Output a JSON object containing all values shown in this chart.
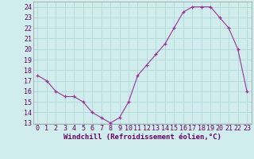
{
  "x": [
    0,
    1,
    2,
    3,
    4,
    5,
    6,
    7,
    8,
    9,
    10,
    11,
    12,
    13,
    14,
    15,
    16,
    17,
    18,
    19,
    20,
    21,
    22,
    23
  ],
  "y": [
    17.5,
    17,
    16,
    15.5,
    15.5,
    15,
    14,
    13.5,
    13,
    13.5,
    15,
    17.5,
    18.5,
    19.5,
    20.5,
    22,
    23.5,
    24,
    24,
    24,
    23,
    22,
    20,
    16
  ],
  "line_color": "#993399",
  "marker": "+",
  "bg_color": "#d0ecec",
  "grid_color": "#b0d8d8",
  "xlabel": "Windchill (Refroidissement éolien,°C)",
  "xlabel_fontsize": 6.5,
  "tick_fontsize": 6.0,
  "ylim": [
    13,
    24.5
  ],
  "yticks": [
    13,
    14,
    15,
    16,
    17,
    18,
    19,
    20,
    21,
    22,
    23,
    24
  ],
  "xticks": [
    0,
    1,
    2,
    3,
    4,
    5,
    6,
    7,
    8,
    9,
    10,
    11,
    12,
    13,
    14,
    15,
    16,
    17,
    18,
    19,
    20,
    21,
    22,
    23
  ]
}
